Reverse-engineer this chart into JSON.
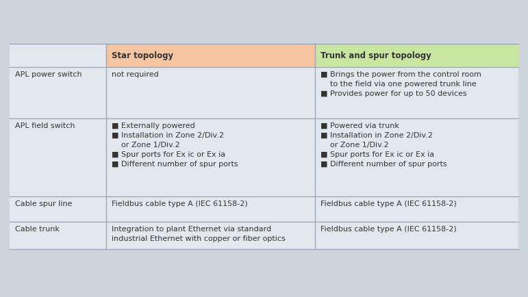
{
  "background_color": "#cdd5dc",
  "table_bg": "#e2e8ed",
  "star_header_color": "#f5c4a0",
  "trunk_header_color": "#c8e6a0",
  "line_color": "#9aa4ae",
  "text_color": "#333333",
  "col1_label": "Star topology",
  "col2_label": "Trunk and spur topology",
  "rows": [
    {
      "label": "APL power switch",
      "col1": "not required",
      "col2": "■ Brings the power from the control room\n    to the field via one powered trunk line\n■ Provides power for up to 50 devices"
    },
    {
      "label": "APL field switch",
      "col1": "■ Externally powered\n■ Installation in Zone 2/Div.2\n    or Zone 1/Div.2\n■ Spur ports for Ex ic or Ex ia\n■ Different number of spur ports",
      "col2": "■ Powered via trunk\n■ Installation in Zone 2/Div.2\n    or Zone 1/Div.2\n■ Spur ports for Ex ic or Ex ia\n■ Different number of spur ports"
    },
    {
      "label": "Cable spur line",
      "col1": "Fieldbus cable type A (IEC 61158-2)",
      "col2": "Fieldbus cable type A (IEC 61158-2)"
    },
    {
      "label": "Cable trunk",
      "col1": "Integration to plant Ethernet via standard\nindustrial Ethernet with copper or fiber optics",
      "col2": "Fieldbus cable type A (IEC 61158-2)"
    }
  ],
  "font_size": 8.0,
  "header_font_size": 8.5,
  "fig_width": 7.71,
  "fig_height": 4.34,
  "dpi": 100
}
